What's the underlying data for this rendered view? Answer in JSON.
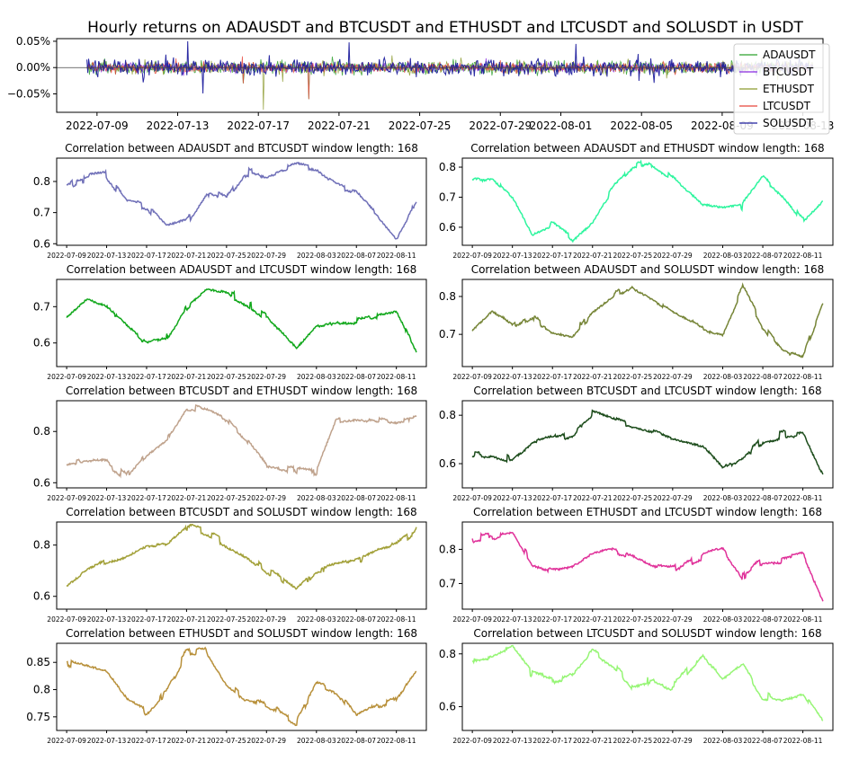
{
  "figure": {
    "title": "Hourly returns on ADAUSDT and BTCUSDT and ETHUSDT and LTCUSDT and SOLUSDT in USDT"
  },
  "chart_data": [
    {
      "id": "returns",
      "type": "line",
      "title": "Hourly returns on ADAUSDT and BTCUSDT and ETHUSDT and LTCUSDT and SOLUSDT in USDT",
      "x_range": [
        "2022-07-07",
        "2022-08-14"
      ],
      "ylim": [
        -0.00085,
        0.00055
      ],
      "x_ticks": [
        "2022-07-09",
        "2022-07-13",
        "2022-07-17",
        "2022-07-21",
        "2022-07-25",
        "2022-07-29",
        "2022-08-01",
        "2022-08-05",
        "2022-08-09",
        "2022-08-13"
      ],
      "y_ticks": [
        -0.0005,
        0.0,
        0.0005
      ],
      "y_tick_labels": [
        "−0.05%",
        "0.00%",
        "0.05%"
      ],
      "zero_line": true,
      "legend": "top-right",
      "series": [
        {
          "name": "ADAUSDT",
          "color": "#2ca02c"
        },
        {
          "name": "BTCUSDT",
          "color": "#8a2be2"
        },
        {
          "name": "ETHUSDT",
          "color": "#8c9a2e"
        },
        {
          "name": "LTCUSDT",
          "color": "#e8443a"
        },
        {
          "name": "SOLUSDT",
          "color": "#1f1f9e"
        }
      ],
      "spikes": [
        {
          "x": "2022-07-13 12:00",
          "y": 0.0005
        },
        {
          "x": "2022-07-16 06:00",
          "y": -0.0003
        },
        {
          "x": "2022-07-17 06:00",
          "y": -0.0008
        },
        {
          "x": "2022-07-19 12:00",
          "y": -0.0006
        },
        {
          "x": "2022-07-21 12:00",
          "y": 0.00048
        },
        {
          "x": "2022-08-01 18:00",
          "y": 0.00045
        }
      ]
    },
    {
      "id": "p1",
      "type": "line",
      "title": "Correlation between ADAUSDT and BTCUSDT window length: 168",
      "color": "#7070b8",
      "ylim": [
        0.595,
        0.875
      ],
      "y_ticks": [
        0.6,
        0.7,
        0.8
      ],
      "x": [
        "2022-07-09",
        "2022-07-11",
        "2022-07-13",
        "2022-07-15",
        "2022-07-17",
        "2022-07-19",
        "2022-07-21",
        "2022-07-23",
        "2022-07-25",
        "2022-07-27",
        "2022-07-29",
        "2022-08-01",
        "2022-08-03",
        "2022-08-05",
        "2022-08-07",
        "2022-08-09",
        "2022-08-11",
        "2022-08-13"
      ],
      "values": [
        0.79,
        0.81,
        0.82,
        0.73,
        0.72,
        0.65,
        0.67,
        0.77,
        0.74,
        0.83,
        0.82,
        0.85,
        0.84,
        0.79,
        0.77,
        0.7,
        0.62,
        0.74
      ]
    },
    {
      "id": "p2",
      "type": "line",
      "title": "Correlation between ADAUSDT and ETHUSDT window length: 168",
      "color": "#2ef59e",
      "ylim": [
        0.54,
        0.83
      ],
      "y_ticks": [
        0.6,
        0.7,
        0.8
      ],
      "x": [
        "2022-07-09",
        "2022-07-11",
        "2022-07-13",
        "2022-07-15",
        "2022-07-17",
        "2022-07-19",
        "2022-07-21",
        "2022-07-23",
        "2022-07-25",
        "2022-07-27",
        "2022-07-29",
        "2022-08-01",
        "2022-08-03",
        "2022-08-05",
        "2022-08-07",
        "2022-08-09",
        "2022-08-11",
        "2022-08-13"
      ],
      "values": [
        0.76,
        0.77,
        0.7,
        0.58,
        0.61,
        0.56,
        0.62,
        0.73,
        0.8,
        0.81,
        0.76,
        0.67,
        0.66,
        0.67,
        0.76,
        0.7,
        0.62,
        0.69
      ]
    },
    {
      "id": "p3",
      "type": "line",
      "title": "Correlation between ADAUSDT and LTCUSDT window length: 168",
      "color": "#12a81c",
      "ylim": [
        0.535,
        0.775
      ],
      "y_ticks": [
        0.6,
        0.7
      ],
      "x": [
        "2022-07-09",
        "2022-07-11",
        "2022-07-13",
        "2022-07-15",
        "2022-07-17",
        "2022-07-19",
        "2022-07-21",
        "2022-07-23",
        "2022-07-25",
        "2022-07-27",
        "2022-07-29",
        "2022-08-01",
        "2022-08-03",
        "2022-08-05",
        "2022-08-07",
        "2022-08-09",
        "2022-08-11",
        "2022-08-13"
      ],
      "values": [
        0.67,
        0.72,
        0.7,
        0.65,
        0.6,
        0.62,
        0.7,
        0.75,
        0.74,
        0.71,
        0.67,
        0.58,
        0.64,
        0.66,
        0.66,
        0.67,
        0.68,
        0.57
      ]
    },
    {
      "id": "p4",
      "type": "line",
      "title": "Correlation between ADAUSDT and SOLUSDT window length: 168",
      "color": "#768537",
      "ylim": [
        0.615,
        0.845
      ],
      "y_ticks": [
        0.7,
        0.8
      ],
      "x": [
        "2022-07-09",
        "2022-07-11",
        "2022-07-13",
        "2022-07-15",
        "2022-07-17",
        "2022-07-19",
        "2022-07-21",
        "2022-07-23",
        "2022-07-25",
        "2022-07-27",
        "2022-07-29",
        "2022-08-01",
        "2022-08-03",
        "2022-08-05",
        "2022-08-07",
        "2022-08-09",
        "2022-08-11",
        "2022-08-13"
      ],
      "values": [
        0.71,
        0.76,
        0.72,
        0.75,
        0.71,
        0.7,
        0.76,
        0.8,
        0.83,
        0.8,
        0.76,
        0.72,
        0.7,
        0.82,
        0.72,
        0.66,
        0.64,
        0.78
      ]
    },
    {
      "id": "p5",
      "type": "line",
      "title": "Correlation between BTCUSDT and ETHUSDT window length: 168",
      "color": "#bfa28c",
      "ylim": [
        0.58,
        0.92
      ],
      "y_ticks": [
        0.6,
        0.8
      ],
      "x": [
        "2022-07-09",
        "2022-07-11",
        "2022-07-13",
        "2022-07-15",
        "2022-07-17",
        "2022-07-19",
        "2022-07-21",
        "2022-07-23",
        "2022-07-25",
        "2022-07-27",
        "2022-07-29",
        "2022-08-01",
        "2022-08-03",
        "2022-08-05",
        "2022-08-07",
        "2022-08-09",
        "2022-08-11",
        "2022-08-13"
      ],
      "values": [
        0.67,
        0.68,
        0.68,
        0.62,
        0.72,
        0.78,
        0.9,
        0.89,
        0.85,
        0.77,
        0.67,
        0.65,
        0.64,
        0.84,
        0.85,
        0.84,
        0.83,
        0.85
      ]
    },
    {
      "id": "p6",
      "type": "line",
      "title": "Correlation between BTCUSDT and LTCUSDT window length: 168",
      "color": "#1d4d1c",
      "ylim": [
        0.5,
        0.86
      ],
      "y_ticks": [
        0.6,
        0.8
      ],
      "x": [
        "2022-07-09",
        "2022-07-11",
        "2022-07-13",
        "2022-07-15",
        "2022-07-17",
        "2022-07-19",
        "2022-07-21",
        "2022-07-23",
        "2022-07-25",
        "2022-07-27",
        "2022-07-29",
        "2022-08-01",
        "2022-08-03",
        "2022-08-05",
        "2022-08-07",
        "2022-08-09",
        "2022-08-11",
        "2022-08-13"
      ],
      "values": [
        0.63,
        0.64,
        0.62,
        0.68,
        0.7,
        0.72,
        0.81,
        0.78,
        0.75,
        0.73,
        0.69,
        0.66,
        0.57,
        0.62,
        0.7,
        0.72,
        0.73,
        0.55
      ]
    },
    {
      "id": "p7",
      "type": "line",
      "title": "Correlation between BTCUSDT and SOLUSDT window length: 168",
      "color": "#a2a038",
      "ylim": [
        0.55,
        0.89
      ],
      "y_ticks": [
        0.6,
        0.8
      ],
      "x": [
        "2022-07-09",
        "2022-07-11",
        "2022-07-13",
        "2022-07-15",
        "2022-07-17",
        "2022-07-19",
        "2022-07-21",
        "2022-07-23",
        "2022-07-25",
        "2022-07-27",
        "2022-07-29",
        "2022-08-01",
        "2022-08-03",
        "2022-08-05",
        "2022-08-07",
        "2022-08-09",
        "2022-08-11",
        "2022-08-13"
      ],
      "values": [
        0.64,
        0.7,
        0.74,
        0.76,
        0.8,
        0.8,
        0.87,
        0.85,
        0.8,
        0.76,
        0.7,
        0.62,
        0.7,
        0.72,
        0.74,
        0.78,
        0.8,
        0.86
      ]
    },
    {
      "id": "p8",
      "type": "line",
      "title": "Correlation between ETHUSDT and LTCUSDT window length: 168",
      "color": "#e0329a",
      "ylim": [
        0.625,
        0.88
      ],
      "y_ticks": [
        0.7,
        0.8
      ],
      "x": [
        "2022-07-09",
        "2022-07-11",
        "2022-07-13",
        "2022-07-15",
        "2022-07-17",
        "2022-07-19",
        "2022-07-21",
        "2022-07-23",
        "2022-07-25",
        "2022-07-27",
        "2022-07-29",
        "2022-08-01",
        "2022-08-03",
        "2022-08-05",
        "2022-08-07",
        "2022-08-09",
        "2022-08-11",
        "2022-08-13"
      ],
      "values": [
        0.83,
        0.84,
        0.86,
        0.76,
        0.74,
        0.75,
        0.79,
        0.8,
        0.78,
        0.75,
        0.74,
        0.78,
        0.8,
        0.72,
        0.77,
        0.77,
        0.78,
        0.64
      ]
    },
    {
      "id": "p9",
      "type": "line",
      "title": "Correlation between ETHUSDT and SOLUSDT window length: 168",
      "color": "#b8903a",
      "ylim": [
        0.725,
        0.885
      ],
      "y_ticks": [
        0.75,
        0.8,
        0.85
      ],
      "x": [
        "2022-07-09",
        "2022-07-11",
        "2022-07-13",
        "2022-07-15",
        "2022-07-17",
        "2022-07-19",
        "2022-07-21",
        "2022-07-23",
        "2022-07-25",
        "2022-07-27",
        "2022-07-29",
        "2022-08-01",
        "2022-08-03",
        "2022-08-05",
        "2022-08-07",
        "2022-08-09",
        "2022-08-11",
        "2022-08-13"
      ],
      "values": [
        0.85,
        0.84,
        0.83,
        0.78,
        0.76,
        0.8,
        0.87,
        0.87,
        0.81,
        0.78,
        0.77,
        0.74,
        0.81,
        0.8,
        0.75,
        0.77,
        0.78,
        0.83
      ]
    },
    {
      "id": "p10",
      "type": "line",
      "title": "Correlation between LTCUSDT and SOLUSDT window length: 168",
      "color": "#96f575",
      "ylim": [
        0.51,
        0.84
      ],
      "y_ticks": [
        0.6,
        0.8
      ],
      "x": [
        "2022-07-09",
        "2022-07-11",
        "2022-07-13",
        "2022-07-15",
        "2022-07-17",
        "2022-07-19",
        "2022-07-21",
        "2022-07-23",
        "2022-07-25",
        "2022-07-27",
        "2022-07-29",
        "2022-08-01",
        "2022-08-03",
        "2022-08-05",
        "2022-08-07",
        "2022-08-09",
        "2022-08-11",
        "2022-08-13"
      ],
      "values": [
        0.77,
        0.78,
        0.82,
        0.72,
        0.7,
        0.72,
        0.81,
        0.76,
        0.68,
        0.7,
        0.67,
        0.8,
        0.7,
        0.76,
        0.64,
        0.63,
        0.65,
        0.54
      ]
    }
  ]
}
